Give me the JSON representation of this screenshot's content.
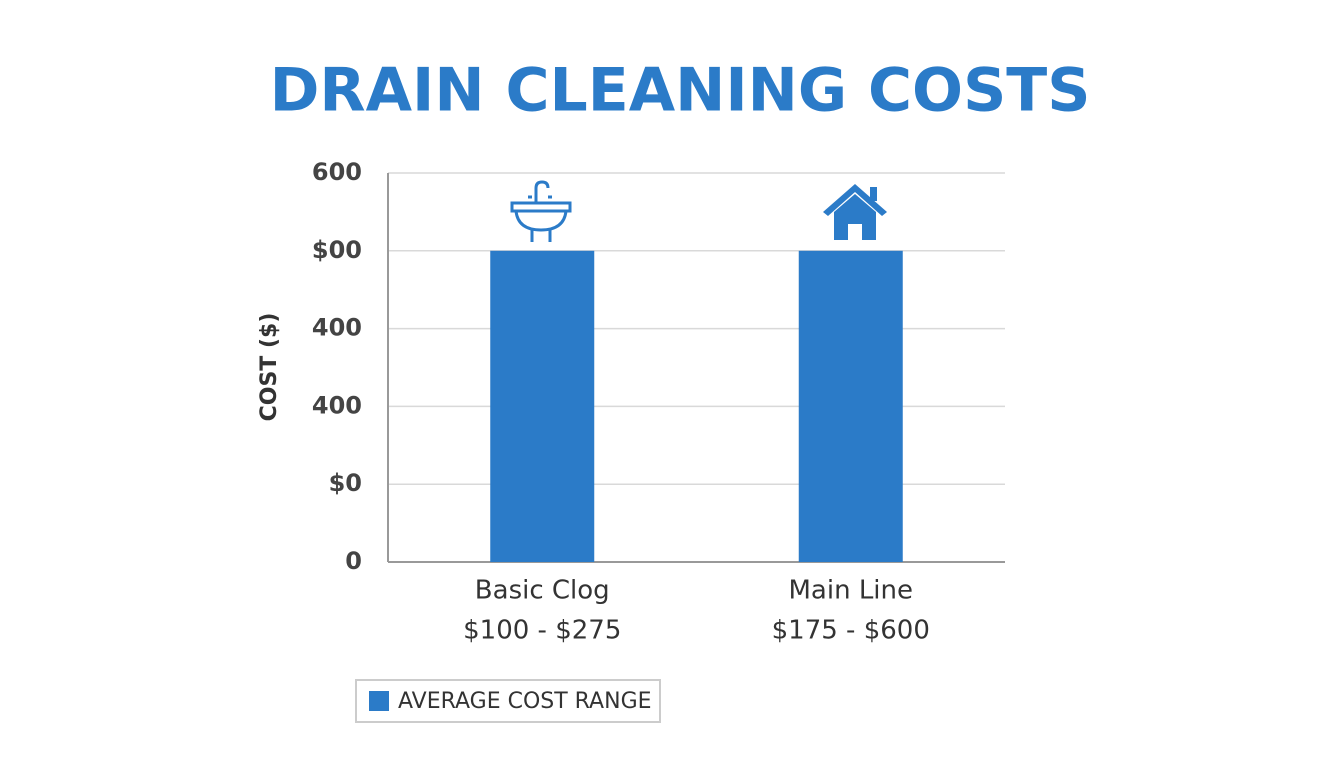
{
  "chart_data": {
    "type": "bar",
    "title": "DRAIN CLEANING COSTS",
    "y_label": "COST ($)",
    "categories": [
      "Basic Clog",
      "Main Line"
    ],
    "category_ranges": [
      "$100 - $275",
      "$175 - $600"
    ],
    "series": [
      {
        "name": "AVERAGE COST RANGE",
        "color": "#2b7bc8",
        "values": [
          480,
          480
        ]
      }
    ],
    "ylim": [
      0,
      600
    ],
    "yticks": [
      0,
      {
        "value": 120,
        "label": "$0"
      },
      {
        "value": 240,
        "label": "400"
      },
      {
        "value": 360,
        "label": "400"
      },
      {
        "value": 480,
        "label": "$00"
      },
      600
    ],
    "grid": true
  }
}
